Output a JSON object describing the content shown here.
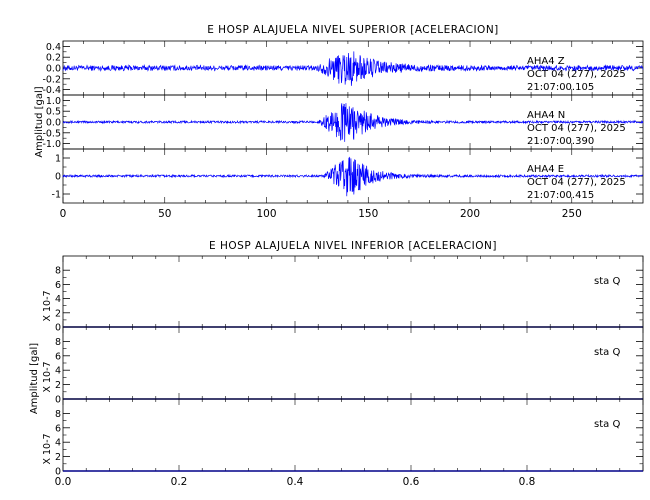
{
  "chart_data": [
    {
      "type": "line",
      "title": "E HOSP ALAJUELA NIVEL SUPERIOR [ACELERACION]",
      "ylabel": "Amplitud [gal]",
      "xlim": [
        0,
        285
      ],
      "xticks": [
        0,
        50,
        100,
        150,
        200,
        250
      ],
      "line_color": "#0000ff",
      "panels": [
        {
          "name": "Z",
          "ylim": [
            -0.5,
            0.5
          ],
          "yticks": [
            -0.4,
            -0.2,
            0.0,
            0.2,
            0.4
          ],
          "ytick_labels": [
            "-0.4",
            "-0.2",
            "0.0",
            "0.2",
            "0.4"
          ],
          "annotation": [
            "AHA4   Z",
            "OCT 04 (277), 2025",
            "21:07:00.105"
          ],
          "signal": {
            "noise_amp": 0.05,
            "peak_amp": 0.34,
            "event_start": 125,
            "peak_time": 140,
            "decay": 12
          }
        },
        {
          "name": "N",
          "ylim": [
            -1.25,
            1.25
          ],
          "yticks": [
            -1.0,
            -0.5,
            0.0,
            0.5,
            1.0
          ],
          "ytick_labels": [
            "-1.0",
            "-0.5",
            "0.0",
            "0.5",
            "1.0"
          ],
          "annotation": [
            "AHA4   N",
            "OCT 04 (277), 2025",
            "21:07:00.390"
          ],
          "signal": {
            "noise_amp": 0.05,
            "peak_amp": 1.05,
            "event_start": 125,
            "peak_time": 140,
            "decay": 10
          }
        },
        {
          "name": "E",
          "ylim": [
            -1.5,
            1.5
          ],
          "yticks": [
            -1,
            0,
            1
          ],
          "ytick_labels": [
            "-1",
            "0",
            "1"
          ],
          "annotation": [
            "AHA4   E",
            "OCT 04 (277), 2025",
            "21:07:00.415"
          ],
          "signal": {
            "noise_amp": 0.06,
            "peak_amp": 1.3,
            "event_start": 128,
            "peak_time": 141,
            "decay": 9
          }
        }
      ]
    },
    {
      "type": "line",
      "title": "E HOSP ALAJUELA NIVEL INFERIOR [ACELERACION]",
      "ylabel": "Amplitud [gal]",
      "xlim": [
        0,
        1
      ],
      "xticks": [
        0.0,
        0.2,
        0.4,
        0.6,
        0.8
      ],
      "xtick_labels": [
        "0.0",
        "0.2",
        "0.4",
        "0.6",
        "0.8"
      ],
      "line_color": "#000088",
      "panels": [
        {
          "name": "Q-1",
          "scale_label": "X 10-7",
          "annotation": [
            "sta    Q"
          ],
          "ylim": [
            0,
            10
          ],
          "yticks": [
            0,
            2,
            4,
            6,
            8
          ],
          "ytick_labels": [
            "0",
            "2",
            "4",
            "6",
            "8"
          ],
          "values": [
            0,
            0
          ]
        },
        {
          "name": "Q-2",
          "scale_label": "X 10-7",
          "annotation": [
            "sta    Q"
          ],
          "ylim": [
            0,
            10
          ],
          "yticks": [
            0,
            2,
            4,
            6,
            8
          ],
          "ytick_labels": [
            "0",
            "2",
            "4",
            "6",
            "8"
          ],
          "values": [
            0,
            0
          ]
        },
        {
          "name": "Q-3",
          "scale_label": "X 10-7",
          "annotation": [
            "sta    Q"
          ],
          "ylim": [
            0,
            10
          ],
          "yticks": [
            0,
            2,
            4,
            6,
            8
          ],
          "ytick_labels": [
            "0",
            "2",
            "4",
            "6",
            "8"
          ],
          "values": [
            0,
            0
          ]
        }
      ]
    }
  ]
}
